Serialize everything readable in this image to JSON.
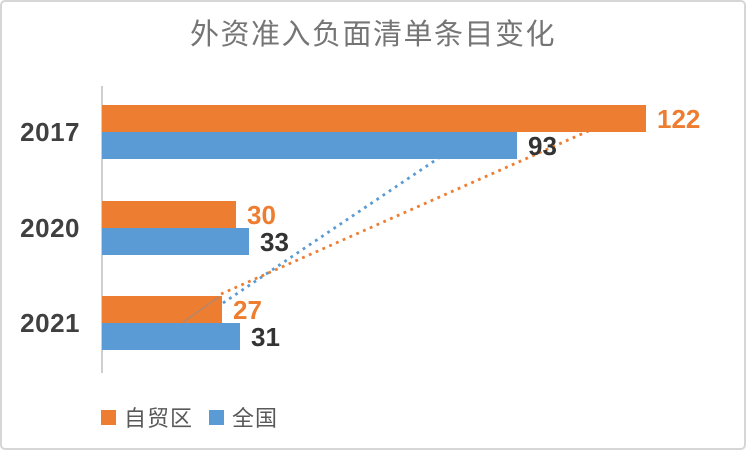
{
  "chart_data": {
    "type": "bar",
    "orientation": "horizontal",
    "title": "外资准入负面清单条目变化",
    "categories": [
      "2017",
      "2020",
      "2021"
    ],
    "series": [
      {
        "name": "自贸区",
        "color": "#ED7D31",
        "label_color": "#ED7D31",
        "values": [
          122,
          30,
          27
        ]
      },
      {
        "name": "全国",
        "color": "#5B9BD5",
        "label_color": "#333333",
        "values": [
          93,
          33,
          31
        ]
      }
    ],
    "value_axis": {
      "visible": false,
      "min": 0
    },
    "category_axis_line_color": "#cfcfcf",
    "grid": false,
    "data_labels": true,
    "legend_position": "bottom-left",
    "annotations": [
      {
        "type": "dotted-trend-line",
        "series": "自贸区",
        "from_category": "2021",
        "to_category": "2017",
        "color": "#ED7D31"
      },
      {
        "type": "dotted-trend-line",
        "series": "全国",
        "from_category": "2021",
        "to_category": "2017",
        "color": "#5B9BD5"
      }
    ]
  },
  "frame": {
    "border_color": "#d6d6d6",
    "background": "#ffffff",
    "title_color": "#757575"
  }
}
